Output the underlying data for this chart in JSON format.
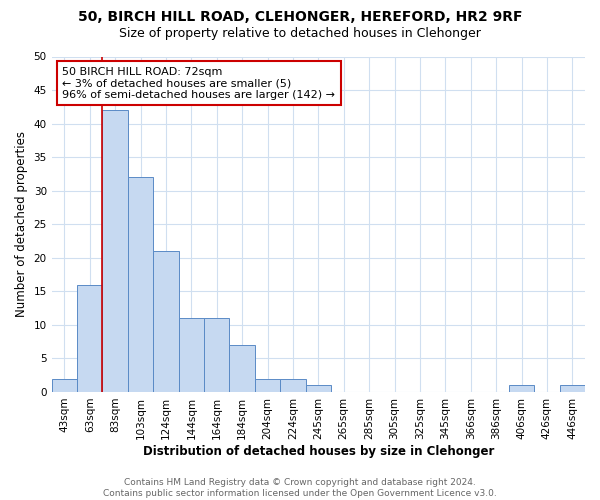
{
  "title_line1": "50, BIRCH HILL ROAD, CLEHONGER, HEREFORD, HR2 9RF",
  "title_line2": "Size of property relative to detached houses in Clehonger",
  "xlabel": "Distribution of detached houses by size in Clehonger",
  "ylabel": "Number of detached properties",
  "bar_labels": [
    "43sqm",
    "63sqm",
    "83sqm",
    "103sqm",
    "124sqm",
    "144sqm",
    "164sqm",
    "184sqm",
    "204sqm",
    "224sqm",
    "245sqm",
    "265sqm",
    "285sqm",
    "305sqm",
    "325sqm",
    "345sqm",
    "366sqm",
    "386sqm",
    "406sqm",
    "426sqm",
    "446sqm"
  ],
  "bar_values": [
    2,
    16,
    42,
    32,
    21,
    11,
    11,
    7,
    2,
    2,
    1,
    0,
    0,
    0,
    0,
    0,
    0,
    0,
    1,
    0,
    1
  ],
  "bar_color": "#c6d9f1",
  "bar_edge_color": "#5a8ac6",
  "grid_color": "#d0dff0",
  "vline_x": 1.5,
  "vline_color": "#cc0000",
  "annotation_text": "50 BIRCH HILL ROAD: 72sqm\n← 3% of detached houses are smaller (5)\n96% of semi-detached houses are larger (142) →",
  "annotation_box_edge": "#cc0000",
  "ylim": [
    0,
    50
  ],
  "yticks": [
    0,
    5,
    10,
    15,
    20,
    25,
    30,
    35,
    40,
    45,
    50
  ],
  "footer_line1": "Contains HM Land Registry data © Crown copyright and database right 2024.",
  "footer_line2": "Contains public sector information licensed under the Open Government Licence v3.0.",
  "title_fontsize": 10,
  "subtitle_fontsize": 9,
  "axis_label_fontsize": 8.5,
  "tick_fontsize": 7.5,
  "annotation_fontsize": 8,
  "footer_fontsize": 6.5
}
